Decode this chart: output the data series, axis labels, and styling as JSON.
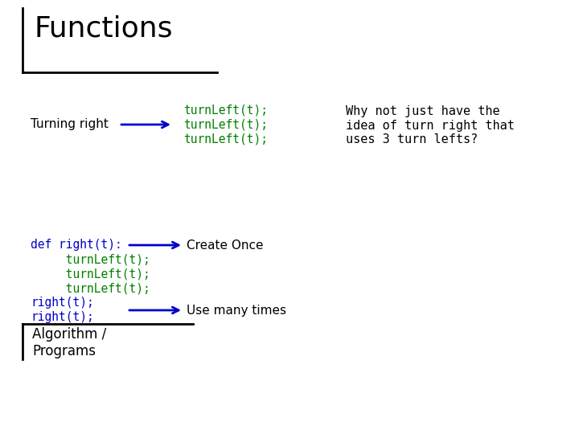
{
  "title": "Functions",
  "bg_color": "#ffffff",
  "title_font_size": 26,
  "title_color": "#000000",
  "turning_right_label": "Turning right",
  "turn_left_lines": [
    "turnLeft(t);",
    "turnLeft(t);",
    "turnLeft(t);"
  ],
  "turn_left_color": "#008000",
  "turning_right_color": "#000000",
  "why_not_lines": [
    "Why not just have the",
    "idea of turn right that",
    "uses 3 turn lefts?"
  ],
  "why_not_color": "#000000",
  "def_right_label": "def right(t):",
  "def_right_color": "#0000cc",
  "indent_turn_left_lines": [
    "     turnLeft(t);",
    "     turnLeft(t);",
    "     turnLeft(t);"
  ],
  "right_calls": [
    "right(t);",
    "right(t);"
  ],
  "right_call_color": "#0000cc",
  "create_once_label": "Create Once",
  "use_many_label": "Use many times",
  "arrow_color": "#0000cc",
  "algo_label": "Algorithm /\nPrograms",
  "algo_color": "#000000",
  "code_fontsize": 10.5,
  "label_fontsize": 11
}
